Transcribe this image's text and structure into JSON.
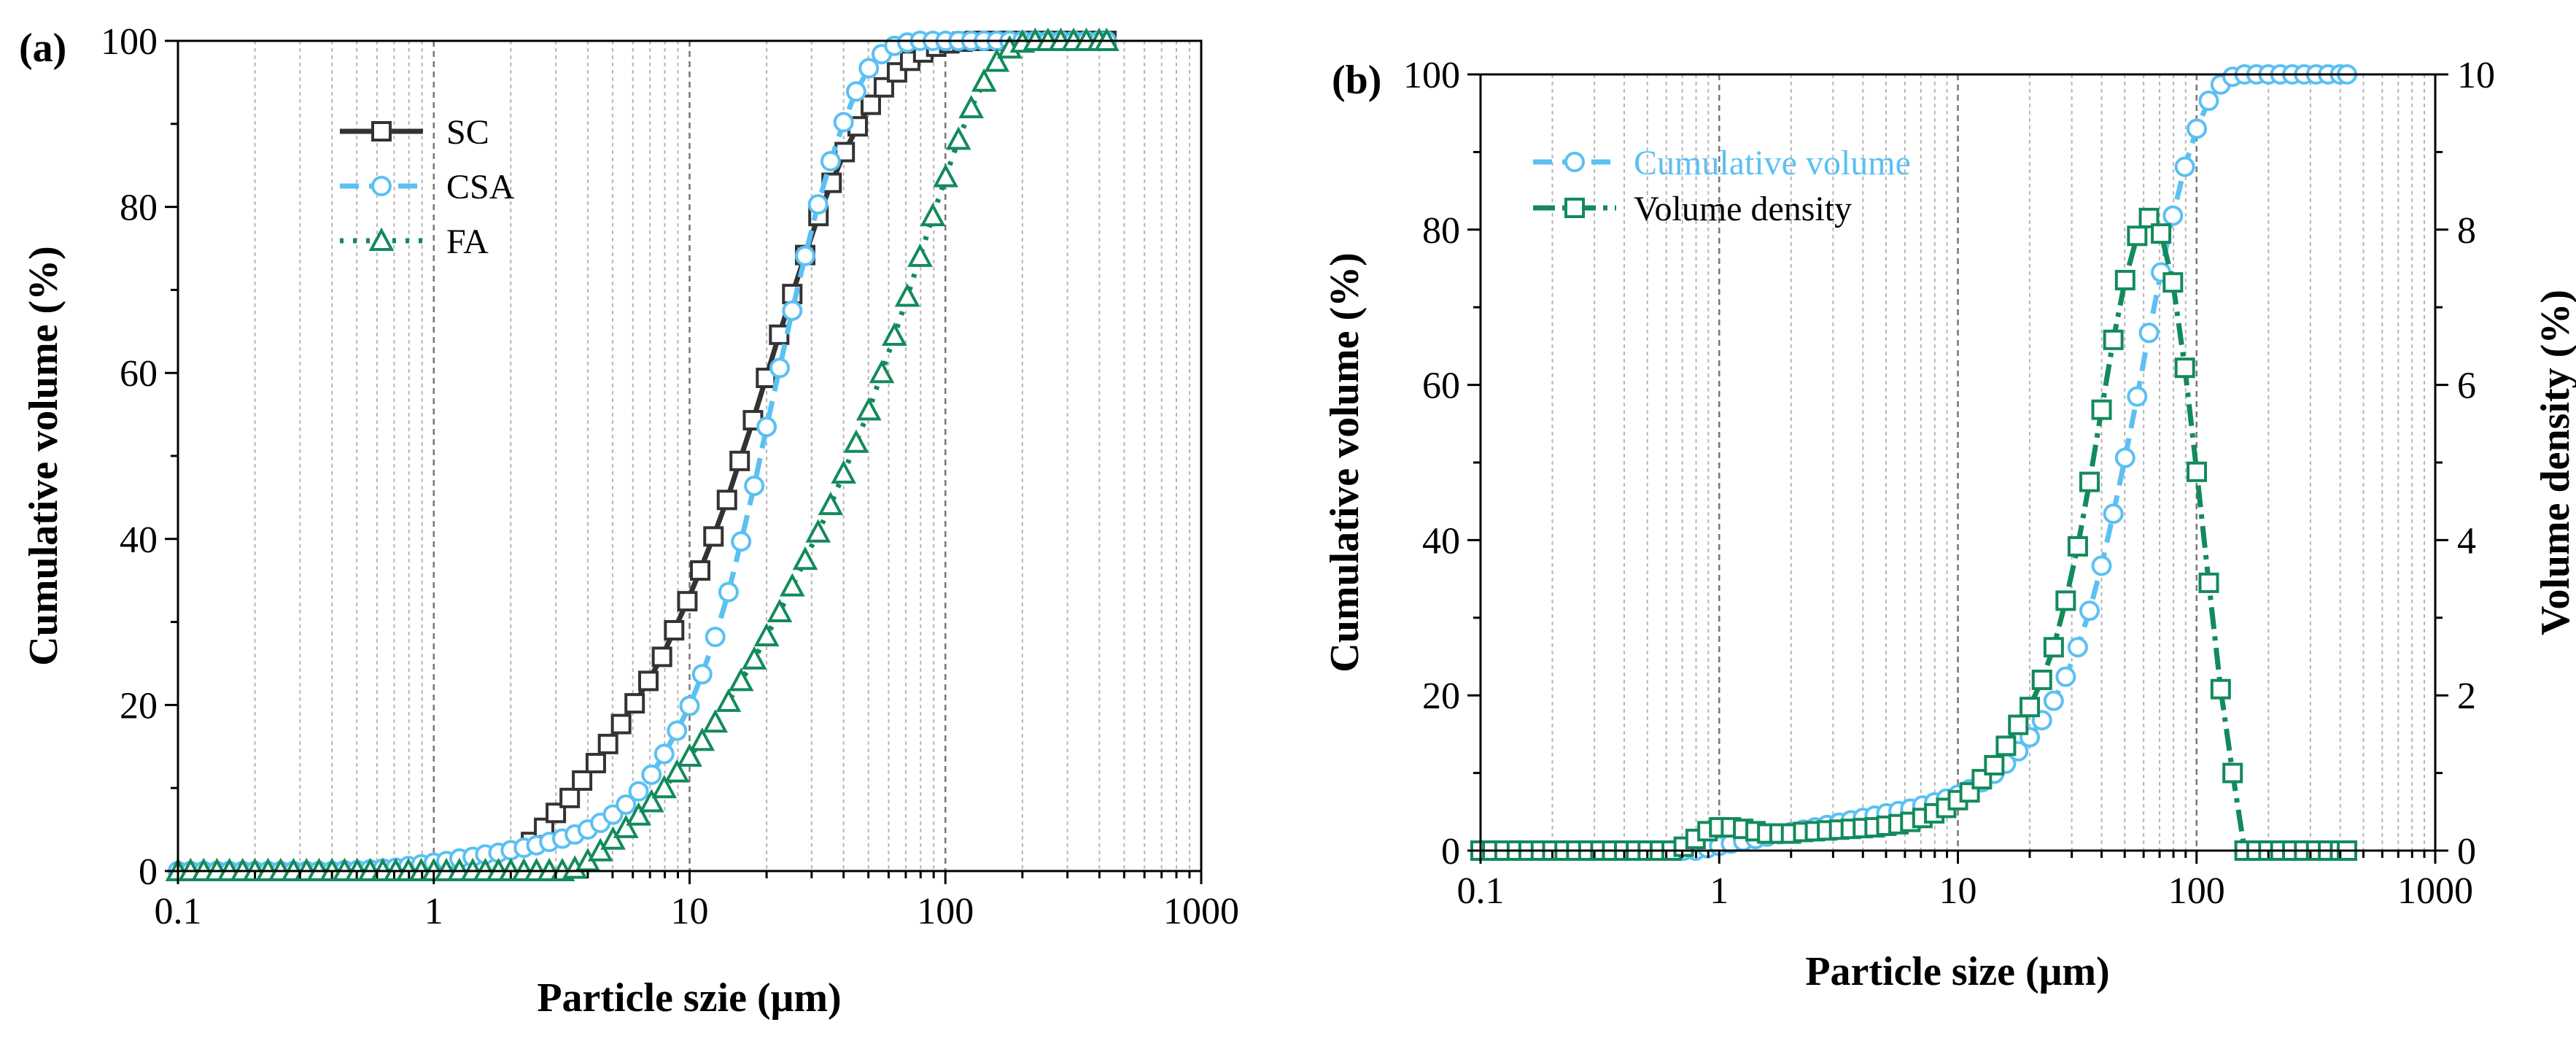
{
  "chart_data": [
    {
      "type": "line",
      "panel_label": "(a)",
      "xlabel": "Particle szie (μm)",
      "ylabel": "Cumulative volume (%)",
      "xscale": "log",
      "xlim": [
        0.1,
        1000
      ],
      "ylim": [
        0,
        100
      ],
      "xticks": [
        "0.1",
        "1",
        "10",
        "100",
        "1000"
      ],
      "yticks": [
        "0",
        "20",
        "40",
        "60",
        "80",
        "100"
      ],
      "grid": "vertical dotted",
      "legend_position": "top-left",
      "series": [
        {
          "name": "SC",
          "color": "#333333",
          "marker": "square",
          "linestyle": "solid",
          "x": [
            2.4,
            2.7,
            3.0,
            3.4,
            3.8,
            4.3,
            4.8,
            5.4,
            6.1,
            6.9,
            7.8,
            8.7,
            9.8,
            11.0,
            12.4,
            14.0,
            15.7,
            17.7,
            19.9,
            22.4,
            25.2,
            28.3,
            31.9,
            35.9,
            40.4,
            45.4,
            51.1,
            57.5,
            64.7,
            72.8,
            81.9,
            92.1,
            103.6,
            116.6,
            131.2,
            147.6,
            166.0,
            186.8,
            210.1,
            236.4,
            265.9,
            299.2,
            336.6,
            378.6,
            426.0
          ],
          "y": [
            3.5,
            5.2,
            7.0,
            8.8,
            10.9,
            13.0,
            15.3,
            17.7,
            20.2,
            22.9,
            25.8,
            29.0,
            32.5,
            36.2,
            40.3,
            44.7,
            49.4,
            54.3,
            59.4,
            64.6,
            69.5,
            74.2,
            78.9,
            82.9,
            86.6,
            89.7,
            92.3,
            94.4,
            96.2,
            97.6,
            98.6,
            99.3,
            99.7,
            99.9,
            100,
            100,
            100,
            100,
            100,
            100,
            100,
            100,
            100,
            100,
            100
          ]
        },
        {
          "name": "CSA",
          "color": "#5BC0F2",
          "marker": "circle",
          "linestyle": "dashed",
          "x": [
            0.1,
            0.112,
            0.126,
            0.142,
            0.159,
            0.179,
            0.2,
            0.225,
            0.252,
            0.283,
            0.318,
            0.356,
            0.4,
            0.448,
            0.502,
            0.564,
            0.632,
            0.71,
            0.796,
            0.893,
            1.0,
            1.12,
            1.26,
            1.42,
            1.59,
            1.79,
            2.0,
            2.25,
            2.52,
            2.83,
            3.18,
            3.56,
            4.0,
            4.48,
            5.02,
            5.64,
            6.32,
            7.1,
            7.96,
            8.93,
            10.0,
            11.2,
            12.6,
            14.2,
            15.9,
            17.9,
            20.0,
            22.5,
            25.2,
            28.3,
            31.8,
            35.6,
            40.0,
            44.8,
            50.2,
            56.4,
            63.2,
            71.0,
            79.6,
            89.3,
            100.2,
            112.5,
            126.2,
            141.6,
            158.9,
            178.3,
            200.0,
            224.4,
            251.8,
            282.5,
            317.0,
            355.7,
            399.1,
            427.0
          ],
          "y": [
            0,
            0,
            0,
            0,
            0,
            0,
            0,
            0,
            0,
            0,
            0,
            0,
            0,
            0.1,
            0.1,
            0.2,
            0.3,
            0.4,
            0.6,
            0.8,
            1.0,
            1.2,
            1.5,
            1.7,
            2.0,
            2.2,
            2.5,
            2.8,
            3.1,
            3.5,
            3.9,
            4.4,
            5.0,
            5.8,
            6.8,
            8.0,
            9.6,
            11.6,
            14.1,
            16.9,
            19.9,
            23.7,
            28.2,
            33.6,
            39.7,
            46.4,
            53.5,
            60.6,
            67.5,
            74.1,
            80.3,
            85.5,
            90.2,
            93.9,
            96.7,
            98.4,
            99.4,
            99.8,
            100,
            100,
            100,
            100,
            100,
            100,
            100,
            100,
            100,
            100,
            100,
            100,
            100,
            100,
            100,
            100
          ]
        },
        {
          "name": "FA",
          "color": "#138A5B",
          "marker": "triangle",
          "linestyle": "dotted",
          "x": [
            0.1,
            0.112,
            0.126,
            0.142,
            0.159,
            0.179,
            0.2,
            0.225,
            0.252,
            0.283,
            0.318,
            0.356,
            0.4,
            0.448,
            0.502,
            0.564,
            0.632,
            0.71,
            0.796,
            0.893,
            1.0,
            1.12,
            1.26,
            1.42,
            1.59,
            1.79,
            2.0,
            2.25,
            2.52,
            2.83,
            3.18,
            3.56,
            4.0,
            4.48,
            5.02,
            5.64,
            6.32,
            7.1,
            7.96,
            8.93,
            10.0,
            11.2,
            12.6,
            14.2,
            15.9,
            17.9,
            20.0,
            22.5,
            25.2,
            28.3,
            31.8,
            35.6,
            40.0,
            44.8,
            50.2,
            56.4,
            63.2,
            71.0,
            79.6,
            89.3,
            100.2,
            112.5,
            126.2,
            141.6,
            158.9,
            178.3,
            200.0,
            224.4,
            251.8,
            282.5,
            317.0,
            355.7,
            399.1,
            427.0
          ],
          "y": [
            0,
            0,
            0,
            0,
            0,
            0,
            0,
            0,
            0,
            0,
            0,
            0,
            0,
            0,
            0,
            0,
            0,
            0,
            0,
            0,
            0,
            0,
            0,
            0,
            0,
            0,
            0,
            0,
            0,
            0,
            0,
            0.3,
            1.2,
            2.4,
            3.8,
            5.2,
            6.7,
            8.3,
            10.0,
            11.9,
            13.8,
            15.7,
            17.9,
            20.4,
            22.9,
            25.5,
            28.3,
            31.2,
            34.3,
            37.5,
            40.8,
            44.1,
            47.9,
            51.6,
            55.5,
            60.0,
            64.5,
            69.2,
            74.0,
            78.9,
            83.6,
            88.1,
            91.9,
            95.1,
            97.5,
            99.1,
            99.8,
            100,
            100,
            100,
            100,
            100,
            100,
            100
          ]
        }
      ]
    },
    {
      "type": "line",
      "panel_label": "(b)",
      "xlabel": "Particle size (μm)",
      "ylabel": "Cumulative volume (%)",
      "ylabel_right": "Volume density (%)",
      "xscale": "log",
      "xlim": [
        0.1,
        1000
      ],
      "ylim": [
        0,
        100
      ],
      "ylim_right": [
        0,
        10
      ],
      "xticks": [
        "0.1",
        "1",
        "10",
        "100",
        "1000"
      ],
      "yticks": [
        "0",
        "20",
        "40",
        "60",
        "80",
        "100"
      ],
      "yticks_right": [
        "0",
        "2",
        "4",
        "6",
        "8",
        "10"
      ],
      "grid": "vertical dotted",
      "legend_position": "top-left",
      "series": [
        {
          "name": "Cumulative volume",
          "axis": "left",
          "color": "#5BC0F2",
          "marker": "circle",
          "linestyle": "dashed",
          "x": [
            0.1,
            0.112,
            0.126,
            0.142,
            0.159,
            0.179,
            0.2,
            0.225,
            0.252,
            0.283,
            0.318,
            0.356,
            0.4,
            0.448,
            0.502,
            0.564,
            0.632,
            0.71,
            0.796,
            0.893,
            1.0,
            1.12,
            1.26,
            1.42,
            1.59,
            1.79,
            2.0,
            2.25,
            2.52,
            2.83,
            3.18,
            3.56,
            4.0,
            4.48,
            5.02,
            5.64,
            6.32,
            7.1,
            7.96,
            8.93,
            10.0,
            11.2,
            12.6,
            14.2,
            15.9,
            17.9,
            20.0,
            22.5,
            25.2,
            28.3,
            31.8,
            35.6,
            40.0,
            44.8,
            50.2,
            56.4,
            63.2,
            71.0,
            79.6,
            89.3,
            100.2,
            112.5,
            126.2,
            141.6,
            158.9,
            178.3,
            200.0,
            224.4,
            251.8,
            282.5,
            317.0,
            355.7,
            399.1,
            427.0
          ],
          "y": [
            0,
            0,
            0,
            0,
            0,
            0,
            0,
            0,
            0,
            0,
            0,
            0,
            0,
            0,
            0,
            0,
            0,
            0,
            0,
            0.3,
            0.6,
            0.9,
            1.2,
            1.5,
            1.8,
            2.1,
            2.4,
            2.7,
            3.0,
            3.3,
            3.6,
            3.9,
            4.2,
            4.5,
            4.8,
            5.1,
            5.4,
            5.8,
            6.2,
            6.7,
            7.2,
            7.9,
            8.8,
            9.9,
            11.2,
            12.8,
            14.6,
            16.8,
            19.3,
            22.4,
            26.2,
            30.9,
            36.7,
            43.4,
            50.6,
            58.5,
            66.7,
            74.5,
            81.8,
            88.1,
            93.0,
            96.6,
            98.7,
            99.7,
            100,
            100,
            100,
            100,
            100,
            100,
            100,
            100,
            100,
            100
          ]
        },
        {
          "name": "Volume density",
          "axis": "right",
          "color": "#138A5B",
          "marker": "square",
          "linestyle": "dash-dot",
          "x": [
            0.1,
            0.112,
            0.126,
            0.142,
            0.159,
            0.179,
            0.2,
            0.225,
            0.252,
            0.283,
            0.318,
            0.356,
            0.4,
            0.448,
            0.502,
            0.564,
            0.632,
            0.71,
            0.796,
            0.893,
            1.0,
            1.12,
            1.26,
            1.42,
            1.59,
            1.79,
            2.0,
            2.25,
            2.52,
            2.83,
            3.18,
            3.56,
            4.0,
            4.48,
            5.02,
            5.64,
            6.32,
            7.1,
            7.96,
            8.93,
            10.0,
            11.2,
            12.6,
            14.2,
            15.9,
            17.9,
            20.0,
            22.5,
            25.2,
            28.3,
            31.8,
            35.6,
            40.0,
            44.8,
            50.2,
            56.4,
            63.2,
            71.0,
            79.6,
            89.3,
            100.2,
            112.5,
            126.2,
            141.6,
            158.9,
            178.3,
            200.0,
            224.4,
            251.8,
            282.5,
            317.0,
            355.7,
            399.1,
            427.0
          ],
          "y": [
            0,
            0,
            0,
            0,
            0,
            0,
            0,
            0,
            0,
            0,
            0,
            0,
            0,
            0,
            0,
            0,
            0,
            0.05,
            0.15,
            0.25,
            0.3,
            0.3,
            0.28,
            0.25,
            0.22,
            0.22,
            0.22,
            0.24,
            0.25,
            0.26,
            0.27,
            0.28,
            0.29,
            0.3,
            0.32,
            0.34,
            0.37,
            0.42,
            0.48,
            0.55,
            0.65,
            0.75,
            0.92,
            1.1,
            1.35,
            1.62,
            1.85,
            2.2,
            2.62,
            3.22,
            3.92,
            4.75,
            5.68,
            6.58,
            7.35,
            7.92,
            8.15,
            7.95,
            7.32,
            6.22,
            4.88,
            3.45,
            2.08,
            1.0,
            0,
            0,
            0,
            0,
            0,
            0,
            0,
            0,
            0,
            0
          ]
        }
      ]
    }
  ]
}
